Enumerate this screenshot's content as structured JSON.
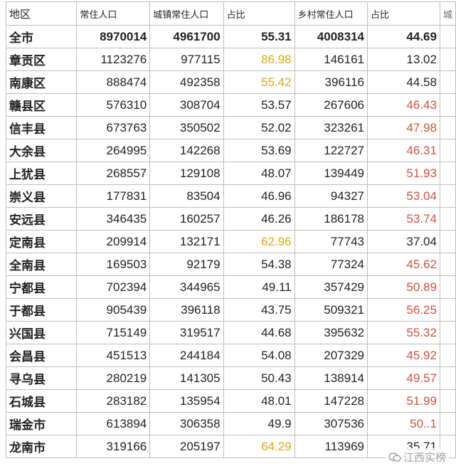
{
  "header": {
    "region": "地区",
    "resident": "常住人口",
    "urban": "城镇常住人口",
    "urban_ratio": "占比",
    "rural": "乡村常住人口",
    "rural_ratio": "占比",
    "cut": "城"
  },
  "rows": [
    {
      "region": "全市",
      "resident": "8970014",
      "urban": "4961700",
      "urban_ratio": "55.31",
      "rural": "4008314",
      "rural_ratio": "44.69",
      "urban_color": "",
      "rural_color": ""
    },
    {
      "region": "章贡区",
      "resident": "1123276",
      "urban": "977115",
      "urban_ratio": "86.98",
      "rural": "146161",
      "rural_ratio": "13.02",
      "urban_color": "orange",
      "rural_color": ""
    },
    {
      "region": "南康区",
      "resident": "888474",
      "urban": "492358",
      "urban_ratio": "55.42",
      "rural": "396116",
      "rural_ratio": "44.58",
      "urban_color": "orange",
      "rural_color": ""
    },
    {
      "region": "赣县区",
      "resident": "576310",
      "urban": "308704",
      "urban_ratio": "53.57",
      "rural": "267606",
      "rural_ratio": "46.43",
      "urban_color": "",
      "rural_color": "red"
    },
    {
      "region": "信丰县",
      "resident": "673763",
      "urban": "350502",
      "urban_ratio": "52.02",
      "rural": "323261",
      "rural_ratio": "47.98",
      "urban_color": "",
      "rural_color": "red"
    },
    {
      "region": "大余县",
      "resident": "264995",
      "urban": "142268",
      "urban_ratio": "53.69",
      "rural": "122727",
      "rural_ratio": "46.31",
      "urban_color": "",
      "rural_color": "red"
    },
    {
      "region": "上犹县",
      "resident": "268557",
      "urban": "129108",
      "urban_ratio": "48.07",
      "rural": "139449",
      "rural_ratio": "51.93",
      "urban_color": "",
      "rural_color": "red"
    },
    {
      "region": "崇义县",
      "resident": "177831",
      "urban": "83504",
      "urban_ratio": "46.96",
      "rural": "94327",
      "rural_ratio": "53.04",
      "urban_color": "",
      "rural_color": "red"
    },
    {
      "region": "安远县",
      "resident": "346435",
      "urban": "160257",
      "urban_ratio": "46.26",
      "rural": "186178",
      "rural_ratio": "53.74",
      "urban_color": "",
      "rural_color": "red"
    },
    {
      "region": "定南县",
      "resident": "209914",
      "urban": "132171",
      "urban_ratio": "62.96",
      "rural": "77743",
      "rural_ratio": "37.04",
      "urban_color": "orange",
      "rural_color": ""
    },
    {
      "region": "全南县",
      "resident": "169503",
      "urban": "92179",
      "urban_ratio": "54.38",
      "rural": "77324",
      "rural_ratio": "45.62",
      "urban_color": "",
      "rural_color": "red"
    },
    {
      "region": "宁都县",
      "resident": "702394",
      "urban": "344965",
      "urban_ratio": "49.11",
      "rural": "357429",
      "rural_ratio": "50.89",
      "urban_color": "",
      "rural_color": "red"
    },
    {
      "region": "于都县",
      "resident": "905439",
      "urban": "396118",
      "urban_ratio": "43.75",
      "rural": "509321",
      "rural_ratio": "56.25",
      "urban_color": "",
      "rural_color": "red"
    },
    {
      "region": "兴国县",
      "resident": "715149",
      "urban": "319517",
      "urban_ratio": "44.68",
      "rural": "395632",
      "rural_ratio": "55.32",
      "urban_color": "",
      "rural_color": "red"
    },
    {
      "region": "会昌县",
      "resident": "451513",
      "urban": "244184",
      "urban_ratio": "54.08",
      "rural": "207329",
      "rural_ratio": "45.92",
      "urban_color": "",
      "rural_color": "red"
    },
    {
      "region": "寻乌县",
      "resident": "280219",
      "urban": "141305",
      "urban_ratio": "50.43",
      "rural": "138914",
      "rural_ratio": "49.57",
      "urban_color": "",
      "rural_color": "red"
    },
    {
      "region": "石城县",
      "resident": "283182",
      "urban": "135954",
      "urban_ratio": "48.01",
      "rural": "147228",
      "rural_ratio": "51.99",
      "urban_color": "",
      "rural_color": "red"
    },
    {
      "region": "瑞金市",
      "resident": "613894",
      "urban": "306358",
      "urban_ratio": "49.9",
      "rural": "307536",
      "rural_ratio": "50..1",
      "urban_color": "",
      "rural_color": "red"
    },
    {
      "region": "龙南市",
      "resident": "319166",
      "urban": "205197",
      "urban_ratio": "64.29",
      "rural": "113969",
      "rural_ratio": "35.71",
      "urban_color": "orange",
      "rural_color": ""
    }
  ],
  "watermark": {
    "icon": "chat-bubble-icon",
    "text": "江西实榜"
  }
}
